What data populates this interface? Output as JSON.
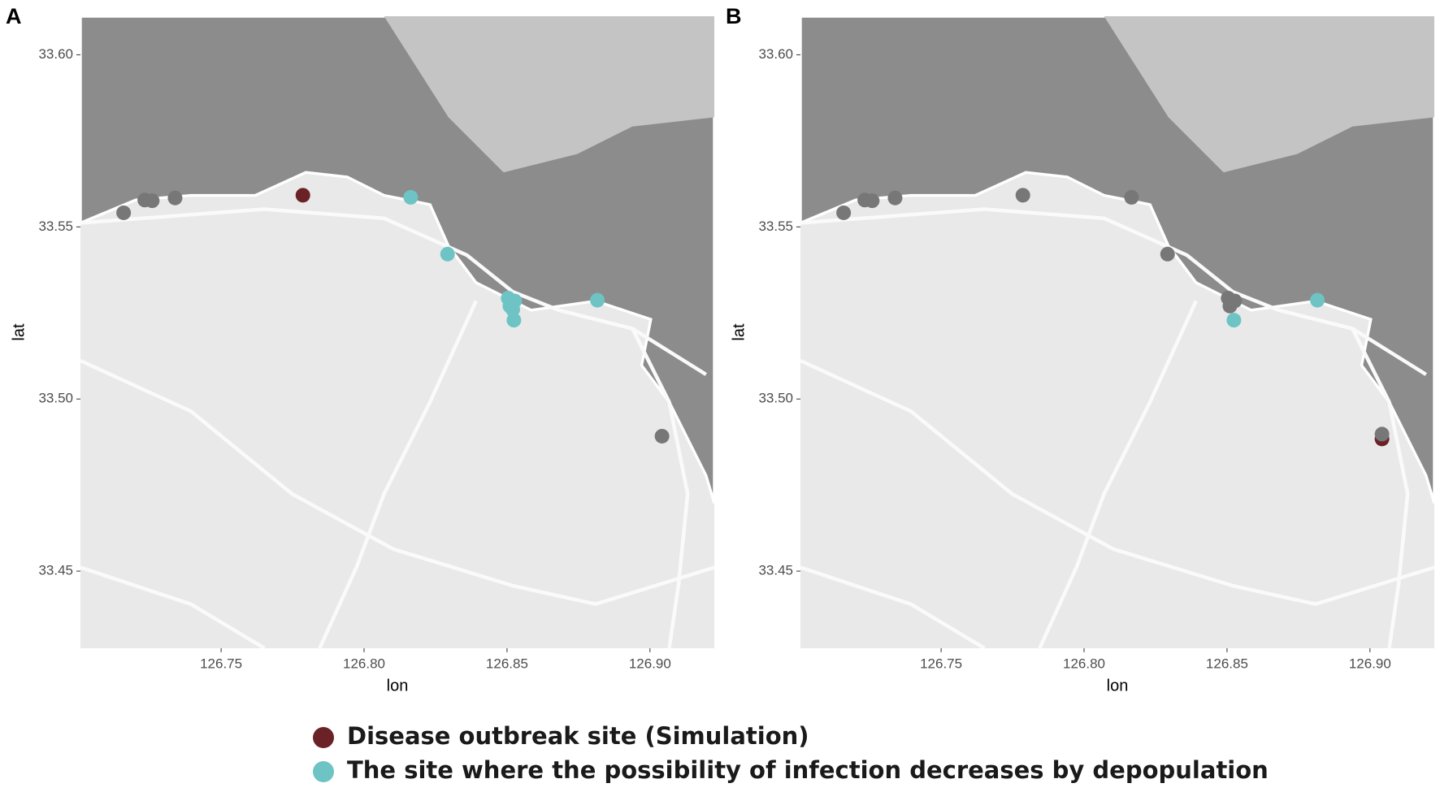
{
  "chart_data": [
    {
      "type": "scatter",
      "title": "A",
      "x_label": "lon",
      "y_label": "lat",
      "xlim": [
        126.7008,
        126.9225
      ],
      "ylim": [
        33.4276,
        33.6112
      ],
      "xticks": [
        126.75,
        {
          "value": 126.8,
          "label": "126.80"
        },
        126.85,
        {
          "value": 126.9,
          "label": "126.90"
        }
      ],
      "yticks": [
        33.45,
        {
          "value": 33.5,
          "label": "33.50"
        },
        33.55,
        {
          "value": 33.6,
          "label": "33.60"
        }
      ],
      "series": [
        {
          "name": "Disease outbreak site (Simulation)",
          "color": "#6b2226",
          "x": [
            126.7786
          ],
          "y": [
            33.5592
          ]
        },
        {
          "color": "#777777",
          "x": [
            126.7159,
            126.7233,
            126.7259,
            126.7339,
            126.9042
          ],
          "y": [
            33.5541,
            33.5578,
            33.5576,
            33.5584,
            33.4892
          ]
        },
        {
          "name": "The site where the possibility of infection decreases by depopulation",
          "color": "#6ec4c4",
          "x": [
            126.8163,
            126.8292,
            126.8504,
            126.8527,
            126.851,
            126.852,
            126.8524,
            126.8816
          ],
          "y": [
            33.5586,
            33.5421,
            33.5293,
            33.5285,
            33.527,
            33.526,
            33.5229,
            33.5287
          ]
        }
      ]
    },
    {
      "type": "scatter",
      "title": "B",
      "x_label": "lon",
      "y_label": "lat",
      "xlim": [
        126.7008,
        126.9225
      ],
      "ylim": [
        33.4276,
        33.6112
      ],
      "xticks": [
        126.75,
        {
          "value": 126.8,
          "label": "126.80"
        },
        126.85,
        {
          "value": 126.9,
          "label": "126.90"
        }
      ],
      "yticks": [
        33.45,
        {
          "value": 33.5,
          "label": "33.50"
        },
        33.55,
        {
          "value": 33.6,
          "label": "33.60"
        }
      ],
      "series": [
        {
          "color": "#6b2226",
          "x": [
            126.9042
          ],
          "y": [
            33.4884
          ]
        },
        {
          "color": "#777777",
          "x": [
            126.7159,
            126.7233,
            126.7259,
            126.7339,
            126.7786,
            126.8166,
            126.8292,
            126.8504,
            126.8527,
            126.851,
            126.9042
          ],
          "y": [
            33.5541,
            33.5578,
            33.5576,
            33.5584,
            33.5592,
            33.5586,
            33.5421,
            33.5293,
            33.5285,
            33.527,
            33.4898
          ]
        },
        {
          "color": "#6ec4c4",
          "x": [
            126.8524,
            126.8816
          ],
          "y": [
            33.5229,
            33.5287
          ]
        }
      ]
    }
  ]
}
